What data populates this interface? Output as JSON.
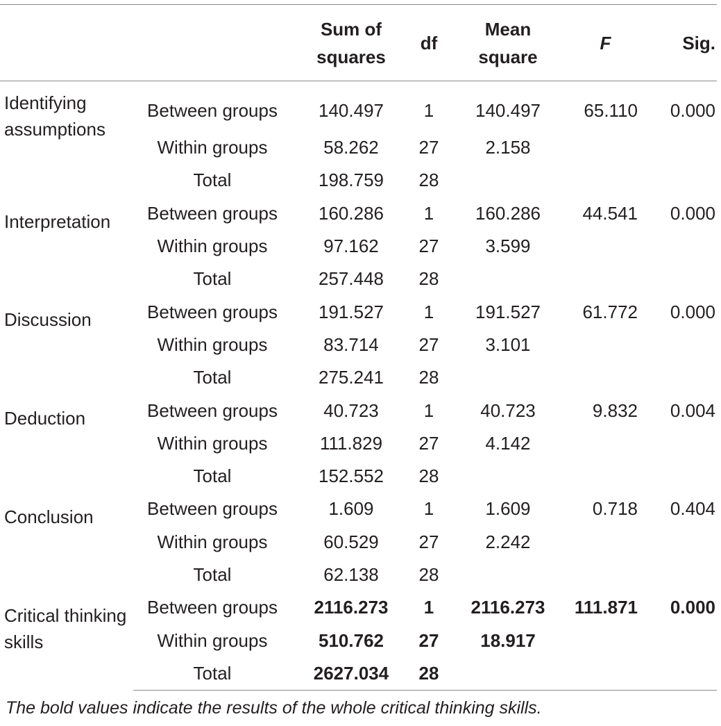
{
  "table": {
    "headers": [
      "",
      "",
      "Sum of squares",
      "df",
      "Mean square",
      "F",
      "Sig."
    ],
    "groups": [
      {
        "label": "Identifying assumptions",
        "rows": [
          {
            "source": "Between groups",
            "ss": "140.497",
            "df": "1",
            "ms": "140.497",
            "f": "65.110",
            "sig": "0.000"
          },
          {
            "source": "Within groups",
            "ss": "58.262",
            "df": "27",
            "ms": "2.158",
            "f": "",
            "sig": ""
          },
          {
            "source": "Total",
            "ss": "198.759",
            "df": "28",
            "ms": "",
            "f": "",
            "sig": ""
          }
        ]
      },
      {
        "label": "Interpretation",
        "rows": [
          {
            "source": "Between groups",
            "ss": "160.286",
            "df": "1",
            "ms": "160.286",
            "f": "44.541",
            "sig": "0.000"
          },
          {
            "source": "Within groups",
            "ss": "97.162",
            "df": "27",
            "ms": "3.599",
            "f": "",
            "sig": ""
          },
          {
            "source": "Total",
            "ss": "257.448",
            "df": "28",
            "ms": "",
            "f": "",
            "sig": ""
          }
        ]
      },
      {
        "label": "Discussion",
        "rows": [
          {
            "source": "Between groups",
            "ss": "191.527",
            "df": "1",
            "ms": "191.527",
            "f": "61.772",
            "sig": "0.000"
          },
          {
            "source": "Within groups",
            "ss": "83.714",
            "df": "27",
            "ms": "3.101",
            "f": "",
            "sig": ""
          },
          {
            "source": "Total",
            "ss": "275.241",
            "df": "28",
            "ms": "",
            "f": "",
            "sig": ""
          }
        ]
      },
      {
        "label": "Deduction",
        "rows": [
          {
            "source": "Between groups",
            "ss": "40.723",
            "df": "1",
            "ms": "40.723",
            "f": "9.832",
            "sig": "0.004"
          },
          {
            "source": "Within groups",
            "ss": "111.829",
            "df": "27",
            "ms": "4.142",
            "f": "",
            "sig": ""
          },
          {
            "source": "Total",
            "ss": "152.552",
            "df": "28",
            "ms": "",
            "f": "",
            "sig": ""
          }
        ]
      },
      {
        "label": "Conclusion",
        "rows": [
          {
            "source": "Between groups",
            "ss": "1.609",
            "df": "1",
            "ms": "1.609",
            "f": "0.718",
            "sig": "0.404"
          },
          {
            "source": "Within groups",
            "ss": "60.529",
            "df": "27",
            "ms": "2.242",
            "f": "",
            "sig": ""
          },
          {
            "source": "Total",
            "ss": "62.138",
            "df": "28",
            "ms": "",
            "f": "",
            "sig": ""
          }
        ]
      },
      {
        "label": "Critical thinking skills",
        "bold": true,
        "rows": [
          {
            "source": "Between groups",
            "ss": "2116.273",
            "df": "1",
            "ms": "2116.273",
            "f": "111.871",
            "sig": "0.000"
          },
          {
            "source": "Within groups",
            "ss": "510.762",
            "df": "27",
            "ms": "18.917",
            "f": "",
            "sig": ""
          },
          {
            "source": "Total",
            "ss": "2627.034",
            "df": "28",
            "ms": "",
            "f": "",
            "sig": ""
          }
        ]
      }
    ]
  },
  "footnote": "The bold values indicate the results of the whole critical thinking skills.",
  "colors": {
    "text": "#231f20",
    "rule": "#8a8a8a",
    "background": "#ffffff"
  }
}
